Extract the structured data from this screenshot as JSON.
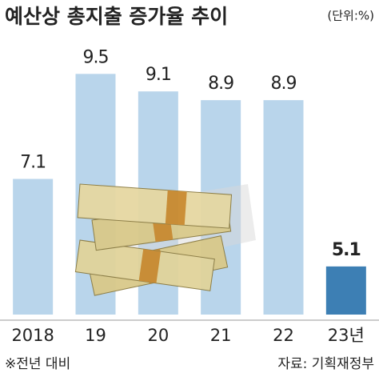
{
  "chart_data": {
    "type": "bar",
    "title": "예산상 총지출 증가율 추이",
    "unit": "(단위:%)",
    "categories": [
      "2018",
      "19",
      "20",
      "21",
      "22",
      "23년"
    ],
    "values": [
      7.1,
      9.5,
      9.1,
      8.9,
      8.9,
      5.1
    ],
    "colors": [
      "#b9d5eb",
      "#b9d5eb",
      "#b9d5eb",
      "#b9d5eb",
      "#b9d5eb",
      "#3d7fb4"
    ],
    "ylim": [
      4,
      10
    ],
    "footnote": "※전년 대비",
    "source": "자료: 기획재정부"
  }
}
